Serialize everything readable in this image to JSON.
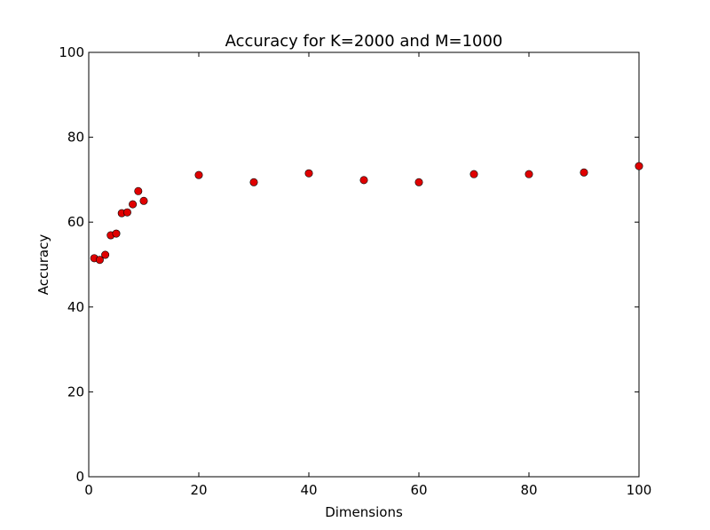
{
  "chart_data": {
    "type": "scatter",
    "title": "Accuracy for K=2000 and M=1000",
    "xlabel": "Dimensions",
    "ylabel": "Accuracy",
    "xlim": [
      0,
      100
    ],
    "ylim": [
      0,
      100
    ],
    "x_ticks": [
      0,
      20,
      40,
      60,
      80,
      100
    ],
    "y_ticks": [
      0,
      20,
      40,
      60,
      80,
      100
    ],
    "x_tick_labels": [
      "0",
      "20",
      "40",
      "60",
      "80",
      "100"
    ],
    "y_tick_labels": [
      "0",
      "20",
      "40",
      "60",
      "80",
      "100"
    ],
    "grid": false,
    "marker_color": "#e00000",
    "series": [
      {
        "name": "accuracy",
        "x": [
          1,
          2,
          3,
          4,
          5,
          6,
          7,
          8,
          9,
          10,
          20,
          30,
          40,
          50,
          60,
          70,
          80,
          90,
          100
        ],
        "y": [
          51.5,
          51.1,
          52.3,
          56.9,
          57.3,
          62.1,
          62.3,
          64.2,
          67.3,
          65.0,
          71.1,
          69.4,
          71.5,
          69.9,
          69.4,
          71.3,
          71.3,
          71.7,
          73.2
        ]
      }
    ]
  }
}
